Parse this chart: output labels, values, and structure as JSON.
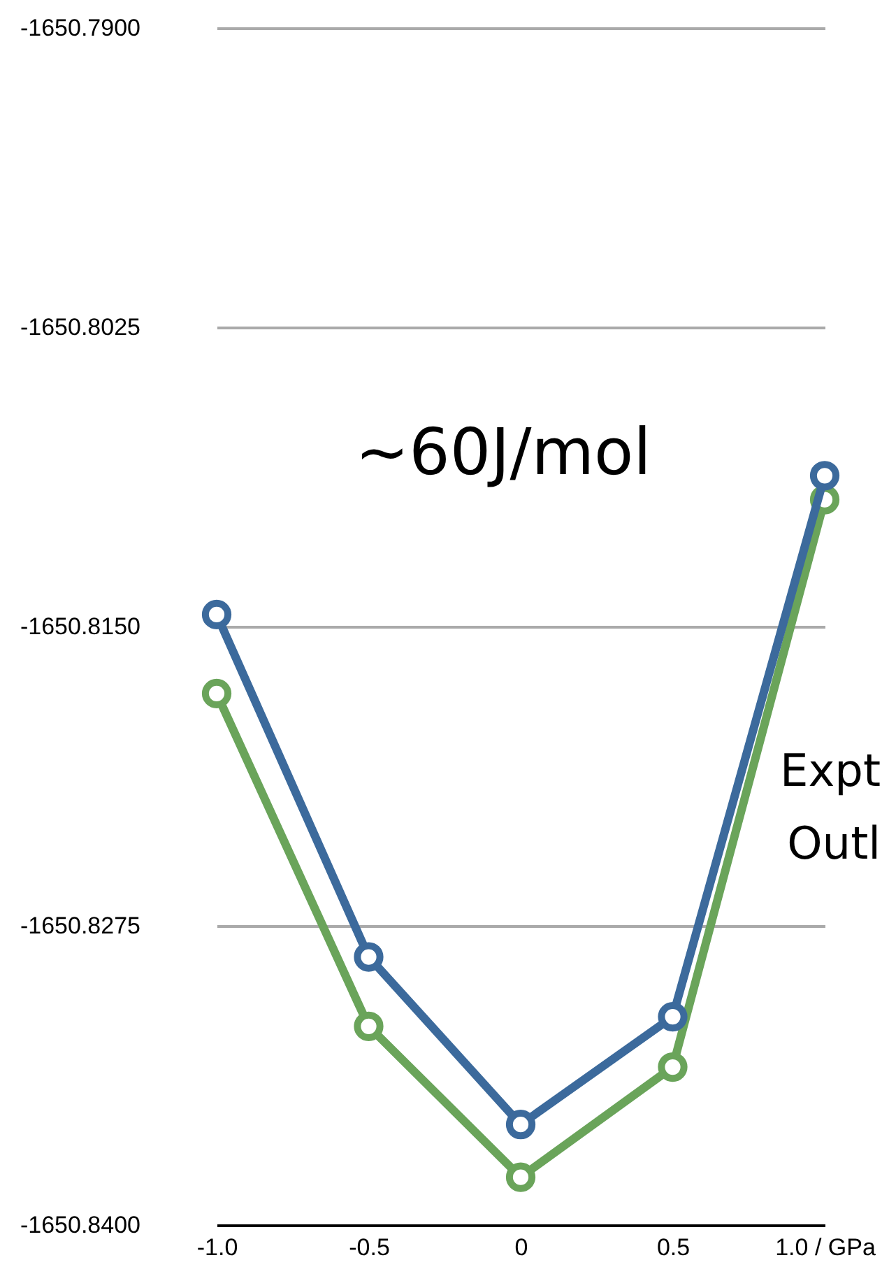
{
  "chart_data": {
    "type": "line",
    "categories": [
      "-1.0",
      "-0.5",
      "0",
      "0.5",
      "1.0 / GPa"
    ],
    "series": [
      {
        "color": "#6aa45a",
        "values": [
          -1650.8178,
          -1650.8317,
          -1650.838,
          -1650.8334,
          -1650.8097
        ]
      },
      {
        "color": "#3c6a9c",
        "values": [
          -1650.8145,
          -1650.8288,
          -1650.8358,
          -1650.8313,
          -1650.8087
        ]
      }
    ],
    "ylim": [
      -1650.84,
      -1650.79
    ],
    "yticks": [
      {
        "value": -1650.84,
        "label": "-1650.8400"
      },
      {
        "value": -1650.8275,
        "label": "-1650.8275"
      },
      {
        "value": -1650.815,
        "label": "-1650.8150"
      },
      {
        "value": -1650.8025,
        "label": "-1650.8025"
      },
      {
        "value": -1650.79,
        "label": "-1650.7900"
      }
    ],
    "grid": "y",
    "marker": "circle",
    "line_style": "solid",
    "annotations": [
      "~60J/mol",
      "Expt",
      "Outl"
    ]
  }
}
